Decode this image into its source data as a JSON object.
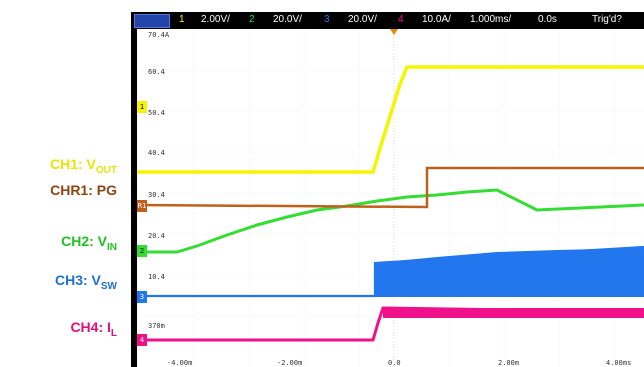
{
  "channel_labels": [
    {
      "name": "CH1: V",
      "sub": "OUT",
      "color": "#e6e600"
    },
    {
      "name": "CHR1: PG",
      "sub": "",
      "color": "#8b4513"
    },
    {
      "name": "CH2: V",
      "sub": "IN",
      "color": "#22c022"
    },
    {
      "name": "CH3: V",
      "sub": "SW",
      "color": "#1f6fd0"
    },
    {
      "name": "CH4: I",
      "sub": "L",
      "color": "#e0107a"
    }
  ],
  "status_bar": {
    "ch1_num": "1",
    "ch1_scale": "2.00V/",
    "ch2_num": "2",
    "ch2_scale": "20.0V/",
    "ch3_num": "3",
    "ch3_scale": "20.0V/",
    "ch4_num": "4",
    "ch4_scale": "10.0A/",
    "timebase": "1.000ms/",
    "delay": "0.0s",
    "trigger": "Trig'd?"
  },
  "y_ticks": [
    "70.4A",
    "60.4",
    "50.4",
    "40.4",
    "30.4",
    "20.4",
    "10.4",
    "370m"
  ],
  "x_ticks": [
    "-4.00m",
    "-2.00m",
    "0.0",
    "2.00m",
    "4.00ms"
  ],
  "ground_markers": [
    "1",
    "R1",
    "2",
    "3",
    "4"
  ],
  "colors": {
    "ch1": "#f5f500",
    "chr1": "#c0601a",
    "ch2": "#33dd33",
    "ch3": "#2277ee",
    "ch4": "#f0108a",
    "grid": "#d8d8d8"
  }
}
